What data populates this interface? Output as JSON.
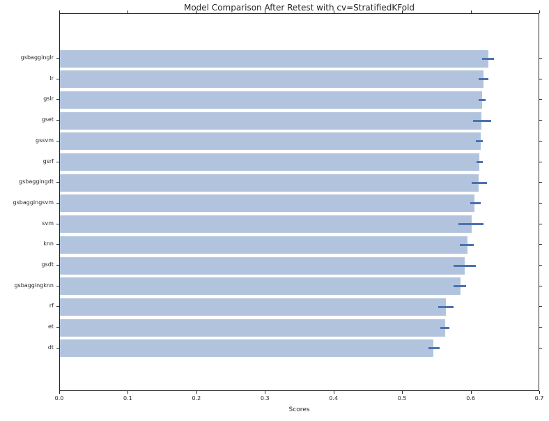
{
  "chart_data": {
    "type": "bar",
    "orientation": "horizontal",
    "title": "Model Comparison After Retest with cv=StratifiedKFold",
    "xlabel": "Scores",
    "ylabel": "",
    "xlim": [
      0.0,
      0.7
    ],
    "xtick_labels": [
      "0.0",
      "0.1",
      "0.2",
      "0.3",
      "0.4",
      "0.5",
      "0.6",
      "0.7"
    ],
    "grid": false,
    "legend": null,
    "categories": [
      "gsbagginglr",
      "lr",
      "gslr",
      "gset",
      "gssvm",
      "gsrf",
      "gsbaggingdt",
      "gsbaggingsvm",
      "svm",
      "knn",
      "gsdt",
      "gsbaggingknn",
      "rf",
      "et",
      "dt"
    ],
    "values": [
      0.625,
      0.618,
      0.616,
      0.615,
      0.614,
      0.612,
      0.611,
      0.605,
      0.6,
      0.594,
      0.59,
      0.584,
      0.563,
      0.562,
      0.545
    ],
    "error_intervals": [
      [
        0.616,
        0.633
      ],
      [
        0.611,
        0.625
      ],
      [
        0.611,
        0.621
      ],
      [
        0.602,
        0.629
      ],
      [
        0.607,
        0.617
      ],
      [
        0.608,
        0.617
      ],
      [
        0.6,
        0.623
      ],
      [
        0.598,
        0.614
      ],
      [
        0.581,
        0.618
      ],
      [
        0.583,
        0.604
      ],
      [
        0.574,
        0.607
      ],
      [
        0.574,
        0.592
      ],
      [
        0.552,
        0.574
      ],
      [
        0.555,
        0.568
      ],
      [
        0.537,
        0.554
      ]
    ],
    "colors": {
      "bar_fill": "#b2c4dd",
      "error_bar": "#4c72b0",
      "axis": "#262626",
      "text": "#262626",
      "background": "#ffffff"
    }
  }
}
